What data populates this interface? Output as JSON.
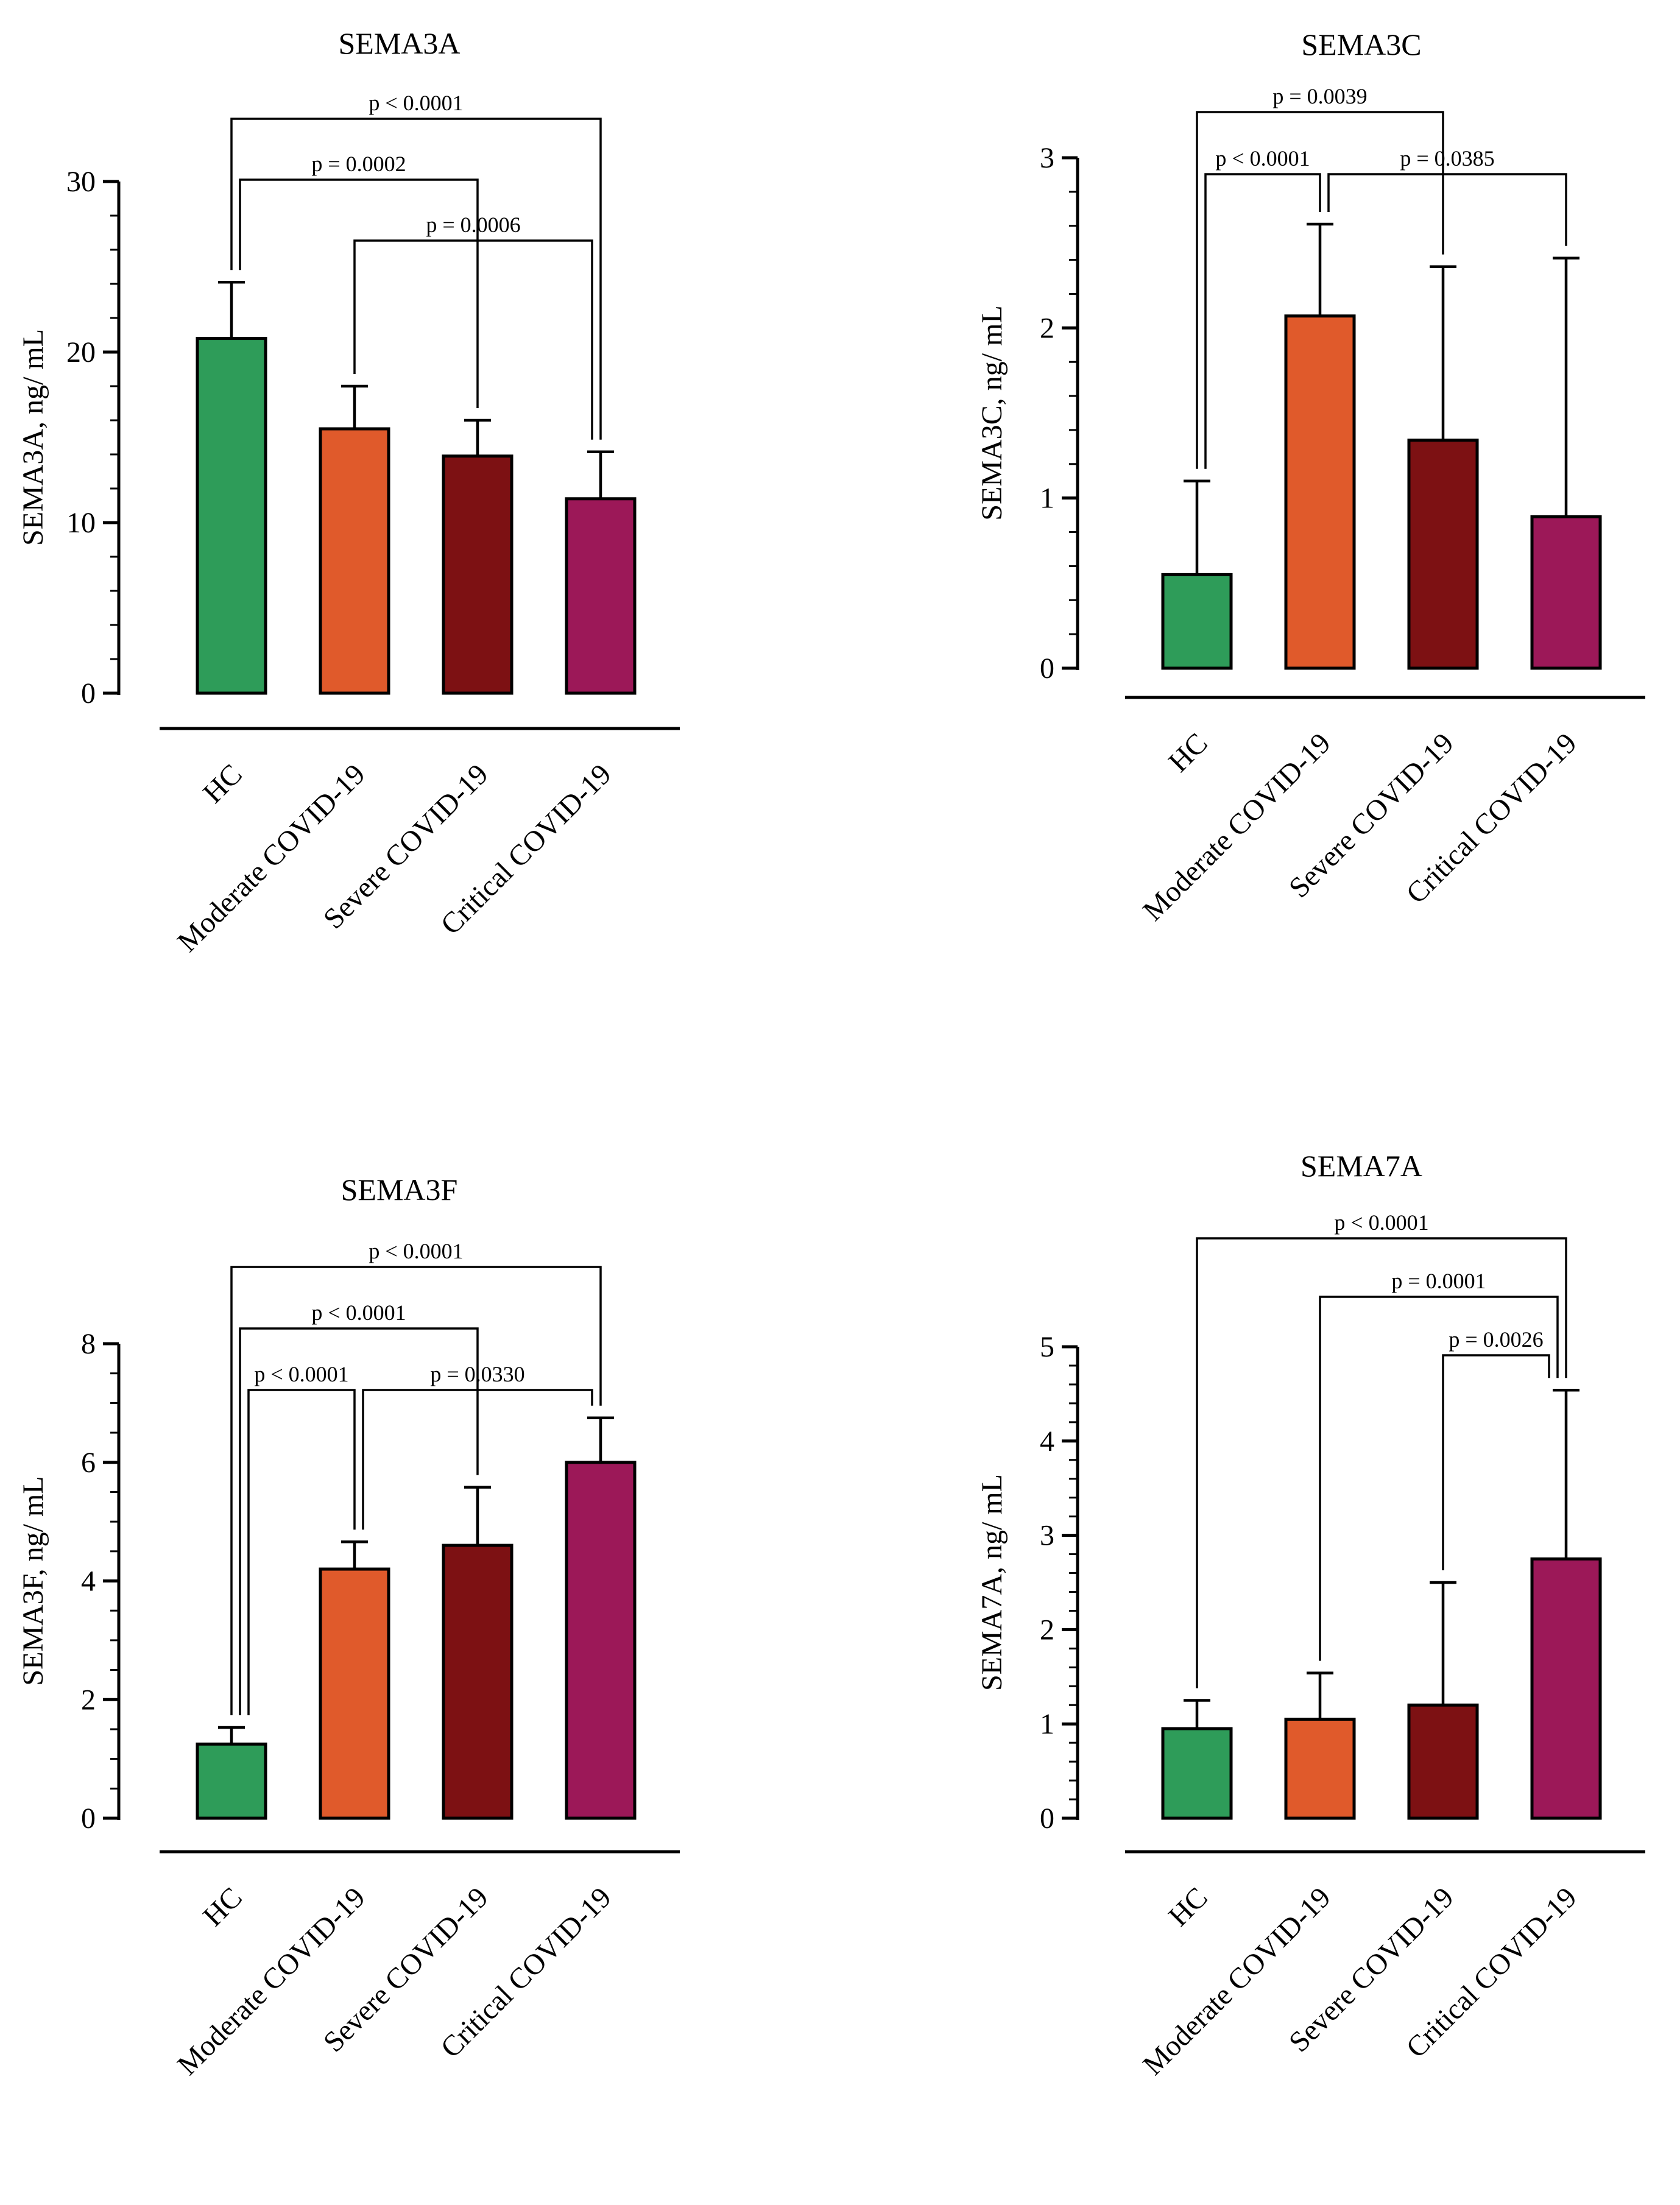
{
  "figure": {
    "background": "#ffffff",
    "text_color": "#000000",
    "panel_titles": [
      "SEMA3A",
      "SEMA3C",
      "SEMA3F",
      "SEMA7A"
    ]
  },
  "chart_data": [
    {
      "id": "sema3a",
      "type": "bar",
      "title": "SEMA3A",
      "ylabel": "SEMA3A, ng/ mL",
      "ylim": [
        0,
        30
      ],
      "yticks": [
        0,
        10,
        20,
        30
      ],
      "minor_step": 2,
      "grid": false,
      "categories": [
        "HC",
        "Moderate COVID-19",
        "Severe COVID-19",
        "Critical COVID-19"
      ],
      "values": [
        20.8,
        15.5,
        13.9,
        11.4
      ],
      "errors_plus": [
        3.3,
        2.5,
        2.1,
        2.75
      ],
      "bar_colors": [
        "#2e9c59",
        "#e05a2b",
        "#7d1113",
        "#9c1858"
      ],
      "comparisons": [
        {
          "from": 0,
          "to": 3,
          "label": "p < 0.0001",
          "level": 3
        },
        {
          "from": 0,
          "to": 2,
          "label": "p = 0.0002",
          "level": 2
        },
        {
          "from": 1,
          "to": 3,
          "label": "p = 0.0006",
          "level": 1
        }
      ]
    },
    {
      "id": "sema3c",
      "type": "bar",
      "title": "SEMA3C",
      "ylabel": "SEMA3C, ng/ mL",
      "ylim": [
        0,
        3
      ],
      "yticks": [
        0,
        1,
        2,
        3
      ],
      "minor_step": 0.2,
      "grid": false,
      "categories": [
        "HC",
        "Moderate COVID-19",
        "Severe COVID-19",
        "Critical COVID-19"
      ],
      "values": [
        0.55,
        2.07,
        1.34,
        0.89
      ],
      "errors_plus": [
        0.55,
        0.54,
        1.02,
        1.52
      ],
      "bar_colors": [
        "#2e9c59",
        "#e05a2b",
        "#7d1113",
        "#9c1858"
      ],
      "comparisons": [
        {
          "from": 0,
          "to": 2,
          "label": "p = 0.0039",
          "level": 3
        },
        {
          "from": 0,
          "to": 1,
          "label": "p < 0.0001",
          "level": 2
        },
        {
          "from": 1,
          "to": 3,
          "label": "p = 0.0385",
          "level": 2
        }
      ]
    },
    {
      "id": "sema3f",
      "type": "bar",
      "title": "SEMA3F",
      "ylabel": "SEMA3F, ng/ mL",
      "ylim": [
        0,
        8
      ],
      "yticks": [
        0,
        2,
        4,
        6,
        8
      ],
      "minor_step": 0.5,
      "grid": false,
      "categories": [
        "HC",
        "Moderate COVID-19",
        "Severe COVID-19",
        "Critical COVID-19"
      ],
      "values": [
        1.25,
        4.2,
        4.6,
        6.0
      ],
      "errors_plus": [
        0.28,
        0.46,
        0.98,
        0.75
      ],
      "bar_colors": [
        "#2e9c59",
        "#e05a2b",
        "#7d1113",
        "#9c1858"
      ],
      "comparisons": [
        {
          "from": 0,
          "to": 3,
          "label": "p < 0.0001",
          "level": 3
        },
        {
          "from": 0,
          "to": 2,
          "label": "p < 0.0001",
          "level": 2
        },
        {
          "from": 0,
          "to": 1,
          "label": "p < 0.0001",
          "level": 1
        },
        {
          "from": 1,
          "to": 3,
          "label": "p = 0.0330",
          "level": 1
        }
      ]
    },
    {
      "id": "sema7a",
      "type": "bar",
      "title": "SEMA7A",
      "ylabel": "SEMA7A, ng/ mL",
      "ylim": [
        0,
        5
      ],
      "yticks": [
        0,
        1,
        2,
        3,
        4,
        5
      ],
      "minor_step": 0.2,
      "grid": false,
      "categories": [
        "HC",
        "Moderate COVID-19",
        "Severe COVID-19",
        "Critical COVID-19"
      ],
      "values": [
        0.95,
        1.05,
        1.2,
        2.75
      ],
      "errors_plus": [
        0.3,
        0.49,
        1.3,
        1.79
      ],
      "bar_colors": [
        "#2e9c59",
        "#e05a2b",
        "#7d1113",
        "#9c1858"
      ],
      "comparisons": [
        {
          "from": 0,
          "to": 3,
          "label": "p < 0.0001",
          "level": 3
        },
        {
          "from": 1,
          "to": 3,
          "label": "p = 0.0001",
          "level": 2
        },
        {
          "from": 2,
          "to": 3,
          "label": "p = 0.0026",
          "level": 1
        }
      ]
    }
  ]
}
